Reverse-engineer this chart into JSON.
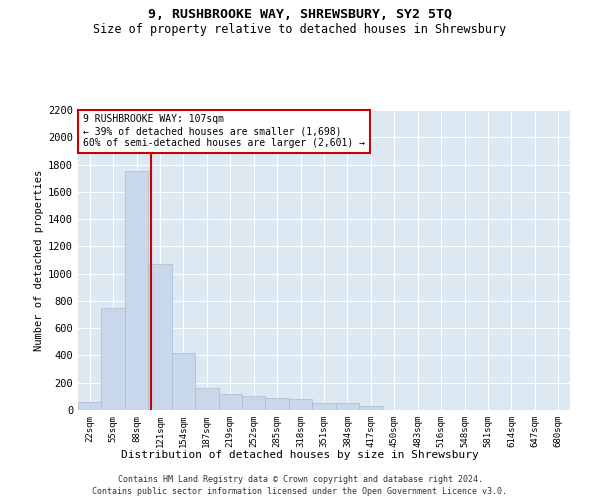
{
  "title": "9, RUSHBROOKE WAY, SHREWSBURY, SY2 5TQ",
  "subtitle": "Size of property relative to detached houses in Shrewsbury",
  "xlabel": "Distribution of detached houses by size in Shrewsbury",
  "ylabel": "Number of detached properties",
  "footer_line1": "Contains HM Land Registry data © Crown copyright and database right 2024.",
  "footer_line2": "Contains public sector information licensed under the Open Government Licence v3.0.",
  "annotation_line1": "9 RUSHBROOKE WAY: 107sqm",
  "annotation_line2": "← 39% of detached houses are smaller (1,698)",
  "annotation_line3": "60% of semi-detached houses are larger (2,601) →",
  "bar_color": "#c8d8ea",
  "bar_edge_color": "#a8bcd0",
  "grid_color": "#ffffff",
  "bg_color": "#dce8f2",
  "vline_color": "#cc0000",
  "vline_x": 2.62,
  "categories": [
    "22sqm",
    "55sqm",
    "88sqm",
    "121sqm",
    "154sqm",
    "187sqm",
    "219sqm",
    "252sqm",
    "285sqm",
    "318sqm",
    "351sqm",
    "384sqm",
    "417sqm",
    "450sqm",
    "483sqm",
    "516sqm",
    "548sqm",
    "581sqm",
    "614sqm",
    "647sqm",
    "680sqm"
  ],
  "values": [
    60,
    750,
    1750,
    1070,
    420,
    160,
    120,
    105,
    90,
    80,
    55,
    50,
    30,
    0,
    0,
    0,
    0,
    0,
    0,
    0,
    0
  ],
  "ylim": [
    0,
    2200
  ],
  "yticks": [
    0,
    200,
    400,
    600,
    800,
    1000,
    1200,
    1400,
    1600,
    1800,
    2000,
    2200
  ]
}
